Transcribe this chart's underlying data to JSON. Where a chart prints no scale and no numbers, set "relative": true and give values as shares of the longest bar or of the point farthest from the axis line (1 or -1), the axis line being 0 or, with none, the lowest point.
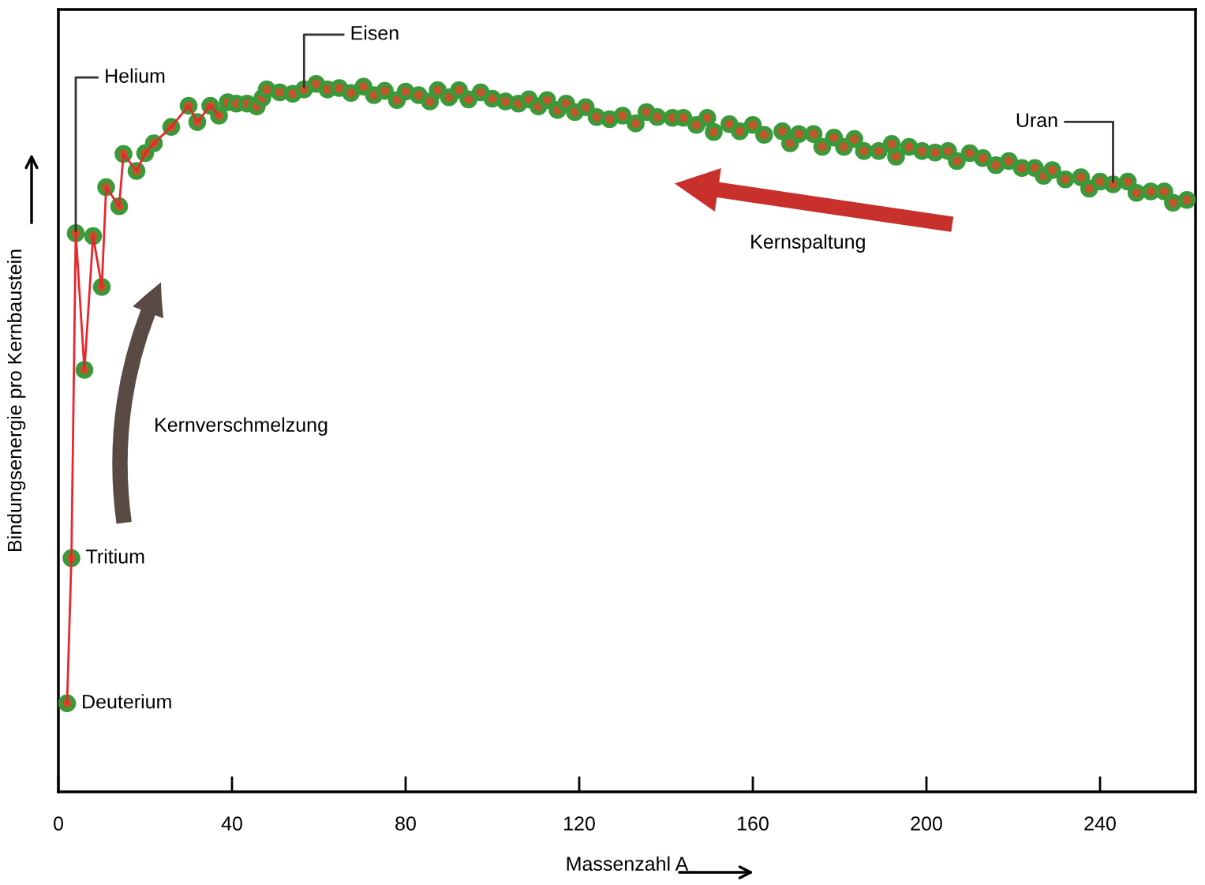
{
  "chart_data": {
    "type": "scatter",
    "relative": true,
    "xlabel": "Massenzahl A",
    "ylabel": "Bindungsenergie pro Kernbaustein",
    "xlim": [
      0,
      262
    ],
    "xticks": [
      0,
      40,
      80,
      120,
      160,
      200,
      240
    ],
    "grid": false,
    "series": [
      {
        "type": "line",
        "color": "#e8262b",
        "marker": "none",
        "x": [
          2,
          3,
          4,
          6,
          8,
          10,
          11,
          14,
          15,
          18,
          20,
          22,
          26,
          30,
          32,
          35,
          37
        ],
        "values": [
          0.125,
          0.33,
          0.789,
          0.596,
          0.785,
          0.713,
          0.854,
          0.827,
          0.901,
          0.877,
          0.902,
          0.916,
          0.939,
          0.969,
          0.946,
          0.969,
          0.955
        ]
      },
      {
        "color": "#3a9a3a",
        "marker": "circle",
        "x": [
          2,
          3,
          4,
          6,
          8,
          10,
          11,
          14,
          15,
          18,
          20,
          22,
          26,
          30,
          32,
          35,
          37,
          39,
          41,
          43.5,
          45.7,
          47,
          48,
          51,
          54,
          56.6,
          59.4,
          62,
          64.7,
          67.4,
          70.3,
          72.7,
          75.2,
          78,
          80,
          83,
          85.6,
          87.4,
          90,
          92.3,
          94.5,
          97.3,
          100,
          103,
          106,
          108.4,
          110.6,
          112.6,
          115,
          117,
          119,
          121.5,
          124,
          127,
          130,
          133,
          135.5,
          138,
          141.5,
          144,
          147,
          149.5,
          151,
          154.6,
          157,
          160,
          162.6,
          166.8,
          168.6,
          170.6,
          174,
          176,
          178.7,
          181,
          183.4,
          185.6,
          189,
          192,
          193,
          196,
          199,
          202,
          205,
          207,
          210,
          213,
          216,
          219,
          222,
          225,
          227,
          229,
          232,
          235.6,
          237.5,
          240,
          243,
          246.4,
          248.4,
          251.7,
          254.8,
          256.8,
          260
        ],
        "values": [
          0.125,
          0.33,
          0.789,
          0.596,
          0.785,
          0.713,
          0.854,
          0.827,
          0.901,
          0.877,
          0.902,
          0.916,
          0.939,
          0.969,
          0.946,
          0.969,
          0.955,
          0.974,
          0.972,
          0.972,
          0.968,
          0.98,
          0.992,
          0.988,
          0.986,
          0.992,
          1.0,
          0.992,
          0.994,
          0.987,
          0.996,
          0.984,
          0.99,
          0.977,
          0.989,
          0.984,
          0.975,
          0.991,
          0.981,
          0.991,
          0.978,
          0.988,
          0.979,
          0.975,
          0.972,
          0.978,
          0.968,
          0.977,
          0.963,
          0.972,
          0.96,
          0.967,
          0.953,
          0.95,
          0.955,
          0.944,
          0.96,
          0.953,
          0.952,
          0.952,
          0.942,
          0.952,
          0.932,
          0.943,
          0.933,
          0.942,
          0.928,
          0.933,
          0.916,
          0.929,
          0.929,
          0.911,
          0.924,
          0.911,
          0.922,
          0.905,
          0.905,
          0.915,
          0.897,
          0.911,
          0.905,
          0.903,
          0.905,
          0.891,
          0.902,
          0.895,
          0.885,
          0.891,
          0.881,
          0.881,
          0.87,
          0.878,
          0.865,
          0.868,
          0.852,
          0.862,
          0.858,
          0.862,
          0.846,
          0.848,
          0.848,
          0.832,
          0.836
        ]
      }
    ],
    "annotations": [
      {
        "text": "Deuterium",
        "x": 2,
        "y": 0.125
      },
      {
        "text": "Tritium",
        "x": 3,
        "y": 0.33
      },
      {
        "text": "Helium",
        "x": 4,
        "y": 0.789
      },
      {
        "text": "Eisen",
        "x": 56.6,
        "y": 0.992
      },
      {
        "text": "Uran",
        "x": 243,
        "y": 0.858
      },
      "Kernverschmelzung",
      "Kernspaltung"
    ]
  }
}
